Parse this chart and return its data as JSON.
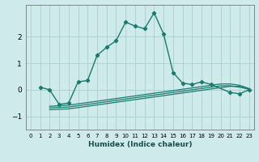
{
  "bg_color": "#ceeaea",
  "grid_color": "#aacfcf",
  "line_color": "#1a7a6e",
  "xlabel": "Humidex (Indice chaleur)",
  "xlim": [
    -0.5,
    23.5
  ],
  "ylim": [
    -1.5,
    3.2
  ],
  "yticks": [
    -1,
    0,
    1,
    2
  ],
  "xticks": [
    0,
    1,
    2,
    3,
    4,
    5,
    6,
    7,
    8,
    9,
    10,
    11,
    12,
    13,
    14,
    15,
    16,
    17,
    18,
    19,
    20,
    21,
    22,
    23
  ],
  "series0_x": [
    1,
    2,
    3,
    4,
    5,
    6,
    7,
    8,
    9,
    10,
    11,
    12,
    13,
    14,
    15,
    16,
    17,
    18,
    19,
    21,
    22,
    23
  ],
  "series0_y": [
    0.1,
    0.0,
    -0.55,
    -0.5,
    0.3,
    0.35,
    1.3,
    1.6,
    1.85,
    2.55,
    2.4,
    2.3,
    2.9,
    2.1,
    0.65,
    0.25,
    0.2,
    0.3,
    0.2,
    -0.1,
    -0.15,
    0.0
  ],
  "flat_lines": [
    {
      "x": [
        2,
        4,
        5,
        6,
        7,
        8,
        9,
        10,
        11,
        12,
        13,
        14,
        15,
        16,
        17,
        18,
        19,
        20,
        21,
        22,
        23
      ],
      "y": [
        -0.75,
        -0.72,
        -0.67,
        -0.62,
        -0.57,
        -0.52,
        -0.47,
        -0.42,
        -0.37,
        -0.32,
        -0.27,
        -0.22,
        -0.17,
        -0.12,
        -0.07,
        -0.02,
        0.03,
        0.08,
        0.13,
        0.13,
        0.02
      ]
    },
    {
      "x": [
        2,
        4,
        5,
        6,
        7,
        8,
        9,
        10,
        11,
        12,
        13,
        14,
        15,
        16,
        17,
        18,
        19,
        20,
        21,
        22,
        23
      ],
      "y": [
        -0.68,
        -0.65,
        -0.6,
        -0.55,
        -0.5,
        -0.45,
        -0.4,
        -0.35,
        -0.3,
        -0.25,
        -0.2,
        -0.15,
        -0.1,
        -0.05,
        0.0,
        0.05,
        0.1,
        0.15,
        0.15,
        0.1,
        0.02
      ]
    },
    {
      "x": [
        2,
        4,
        5,
        6,
        7,
        8,
        9,
        10,
        11,
        12,
        13,
        14,
        15,
        16,
        17,
        18,
        19,
        20,
        21,
        22,
        23
      ],
      "y": [
        -0.62,
        -0.58,
        -0.53,
        -0.48,
        -0.43,
        -0.38,
        -0.33,
        -0.28,
        -0.23,
        -0.18,
        -0.13,
        -0.08,
        -0.03,
        0.02,
        0.07,
        0.12,
        0.17,
        0.22,
        0.22,
        0.17,
        0.05
      ]
    }
  ]
}
